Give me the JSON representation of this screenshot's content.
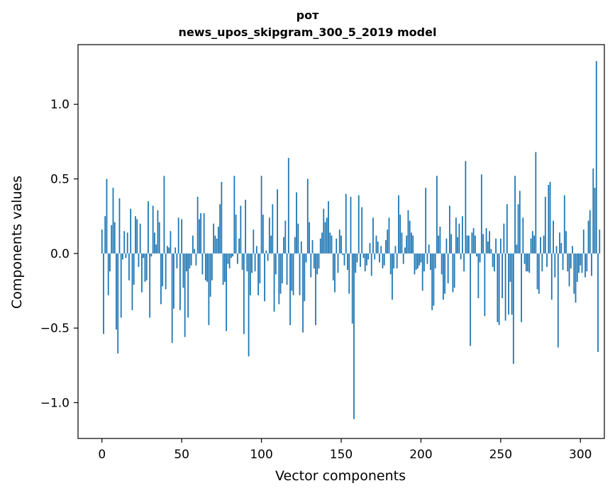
{
  "chart_data": {
    "type": "bar",
    "title_lines": [
      "рот",
      "news_upos_skipgram_300_5_2019 model"
    ],
    "xlabel": "Vector components",
    "ylabel": "Components values",
    "xlim": [
      -15,
      315
    ],
    "ylim": [
      -1.24,
      1.4
    ],
    "x_ticks": [
      0,
      50,
      100,
      150,
      200,
      250,
      300
    ],
    "y_ticks": [
      -1.0,
      -0.5,
      0.0,
      0.5,
      1.0
    ],
    "y_tick_labels": [
      "−1.0",
      "−0.5",
      "0.0",
      "0.5",
      "1.0"
    ],
    "grid": false,
    "bar_color": "#1f77b4",
    "series": [
      {
        "x_start": 0,
        "values": [
          0.16,
          -0.54,
          0.25,
          0.5,
          -0.28,
          -0.12,
          0.19,
          0.44,
          0.21,
          -0.51,
          -0.67,
          0.37,
          -0.43,
          -0.04,
          0.15,
          -0.03,
          0.14,
          -0.18,
          0.3,
          -0.38,
          -0.21,
          0.25,
          0.23,
          -0.09,
          0.2,
          -0.26,
          -0.03,
          -0.19,
          -0.18,
          0.35,
          -0.43,
          -0.02,
          0.32,
          0.14,
          0.06,
          0.29,
          0.21,
          -0.34,
          -0.22,
          0.52,
          -0.24,
          0.05,
          0.04,
          0.15,
          -0.6,
          -0.37,
          0.04,
          -0.1,
          0.24,
          -0.38,
          0.23,
          -0.23,
          -0.56,
          -0.12,
          -0.43,
          -0.1,
          -0.08,
          0.12,
          0.03,
          -0.08,
          0.38,
          0.23,
          0.27,
          -0.14,
          0.27,
          -0.18,
          -0.19,
          -0.48,
          -0.29,
          -0.18,
          0.2,
          0.12,
          0.1,
          0.18,
          0.33,
          0.48,
          -0.21,
          -0.19,
          -0.52,
          -0.07,
          -0.1,
          -0.03,
          -0.02,
          0.52,
          0.26,
          -0.07,
          0.1,
          0.32,
          -0.11,
          -0.54,
          0.36,
          -0.12,
          -0.69,
          -0.28,
          -0.13,
          0.16,
          -0.12,
          0.05,
          -0.28,
          -0.2,
          0.52,
          0.26,
          -0.32,
          0.02,
          -0.05,
          0.24,
          0.12,
          0.33,
          -0.39,
          -0.14,
          0.43,
          -0.34,
          -0.27,
          -0.2,
          0.11,
          0.22,
          -0.21,
          0.64,
          -0.48,
          -0.25,
          -0.28,
          0.11,
          0.41,
          0.2,
          -0.28,
          0.08,
          -0.53,
          -0.32,
          -0.06,
          0.5,
          0.21,
          -0.16,
          0.09,
          -0.1,
          -0.48,
          -0.14,
          -0.1,
          0.1,
          0.14,
          0.3,
          0.21,
          0.24,
          0.35,
          0.14,
          0.12,
          -0.18,
          -0.26,
          0.1,
          -0.13,
          0.16,
          0.12,
          -0.01,
          -0.08,
          0.4,
          -0.11,
          -0.27,
          0.38,
          -0.47,
          -1.11,
          -0.13,
          -0.06,
          0.39,
          -0.09,
          0.31,
          -0.03,
          -0.12,
          -0.08,
          -0.04,
          0.07,
          -0.15,
          0.24,
          -0.04,
          0.12,
          0.08,
          -0.06,
          0.05,
          -0.1,
          -0.08,
          0.09,
          0.16,
          0.24,
          -0.14,
          -0.31,
          -0.1,
          0.05,
          -0.1,
          0.39,
          0.26,
          0.14,
          -0.07,
          0.04,
          0.12,
          0.29,
          0.22,
          0.14,
          0.12,
          -0.14,
          -0.11,
          -0.1,
          -0.08,
          -0.06,
          -0.25,
          -0.12,
          0.44,
          -0.07,
          0.06,
          -0.11,
          -0.38,
          -0.35,
          -0.1,
          0.52,
          0.12,
          0.18,
          -0.14,
          -0.31,
          -0.27,
          0.1,
          -0.2,
          0.32,
          0.13,
          -0.26,
          -0.23,
          0.24,
          0.11,
          0.2,
          -0.04,
          0.25,
          -0.12,
          0.62,
          0.12,
          0.12,
          -0.62,
          0.14,
          0.17,
          0.12,
          -0.02,
          -0.3,
          -0.06,
          0.53,
          0.13,
          -0.42,
          0.17,
          0.08,
          0.15,
          0.03,
          -0.09,
          -0.12,
          0.1,
          -0.46,
          -0.48,
          0.1,
          -0.3,
          0.2,
          -0.45,
          0.33,
          -0.41,
          -0.19,
          -0.41,
          -0.74,
          0.52,
          0.06,
          0.33,
          0.42,
          -0.46,
          0.24,
          -0.07,
          -0.12,
          -0.12,
          -0.13,
          0.1,
          0.15,
          0.12,
          0.68,
          -0.24,
          -0.27,
          0.11,
          -0.12,
          0.12,
          0.38,
          -0.09,
          0.46,
          0.48,
          -0.31,
          0.22,
          -0.16,
          0.05,
          -0.63,
          0.14,
          0.07,
          -0.11,
          0.39,
          0.15,
          -0.12,
          -0.22,
          -0.1,
          0.05,
          -0.27,
          -0.33,
          -0.19,
          -0.13,
          -0.08,
          -0.13,
          0.16,
          -0.16,
          -0.12,
          0.22,
          0.29,
          -0.15,
          0.57,
          0.44,
          1.29,
          -0.66,
          0.16
        ]
      }
    ]
  }
}
